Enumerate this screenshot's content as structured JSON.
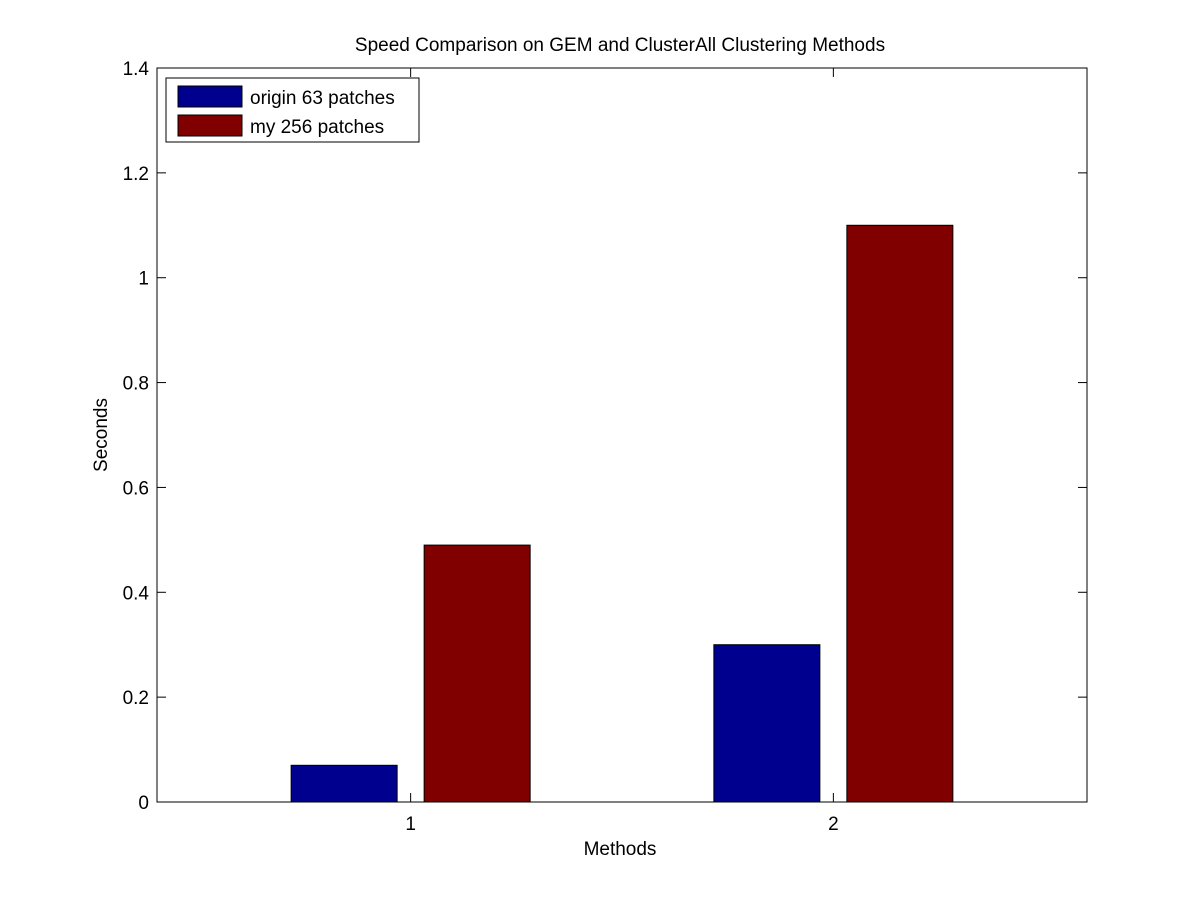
{
  "chart_data": {
    "type": "bar",
    "title": "Speed Comparison on GEM and ClusterAll Clustering Methods",
    "xlabel": "Methods",
    "ylabel": "Seconds",
    "categories": [
      "1",
      "2"
    ],
    "series": [
      {
        "name": "origin 63 patches",
        "values": [
          0.07,
          0.3
        ],
        "color": "#00008f"
      },
      {
        "name": "my 256 patches",
        "values": [
          0.49,
          1.1
        ],
        "color": "#800000"
      }
    ],
    "ylim": [
      0,
      1.4
    ],
    "yticks": [
      "0",
      "0.2",
      "0.4",
      "0.6",
      "0.8",
      "1",
      "1.2",
      "1.4"
    ],
    "legend": "top-left",
    "grid": false
  }
}
